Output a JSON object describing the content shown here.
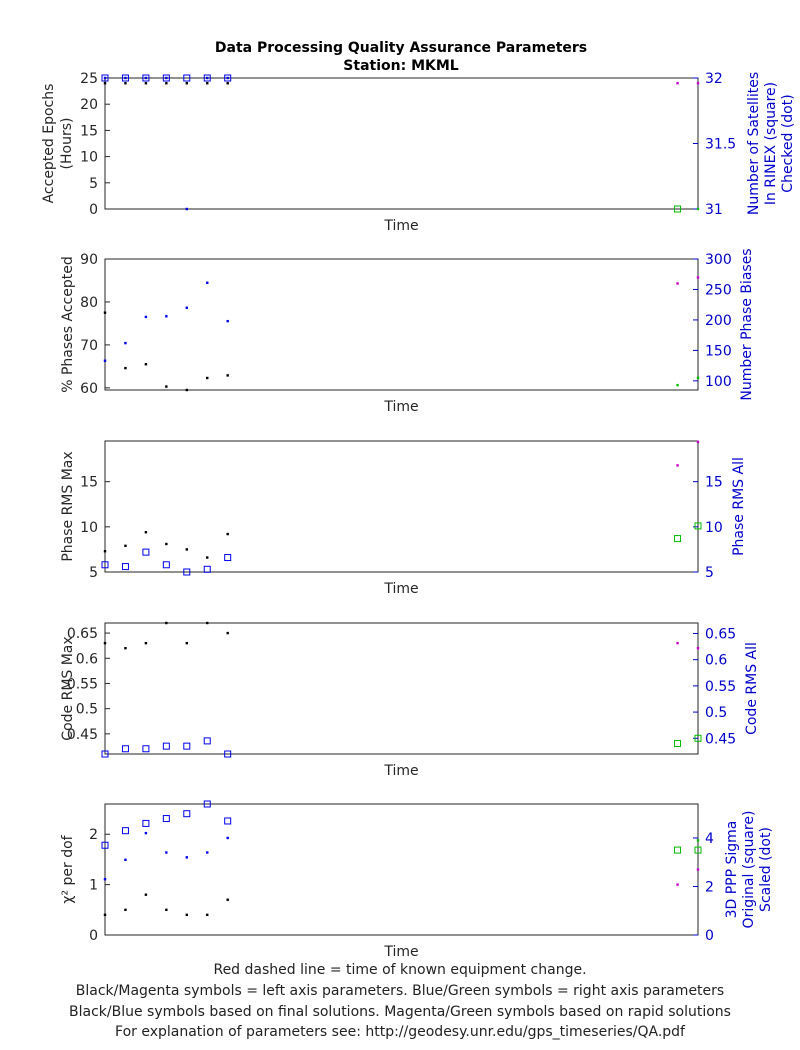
{
  "figure": {
    "title": "Data Processing Quality Assurance Parameters",
    "subtitle": "Station: MKML",
    "footer": [
      "Red dashed line = time of known equipment change.",
      "Black/Magenta symbols = left axis parameters. Blue/Green symbols = right axis parameters",
      "Black/Blue symbols based on final solutions.  Magenta/Green symbols based on rapid solutions",
      "For explanation of parameters see: http://geodesy.unr.edu/gps_timeseries/QA.pdf"
    ]
  },
  "colors": {
    "final_left": "#000000",
    "rapid_left": "#cc00cc",
    "final_right": "#0000ee",
    "rapid_right": "#00bb00",
    "right_axis": "#0000cc"
  },
  "chart_data": [
    {
      "type": "scatter",
      "xlabel": "Time",
      "ylabel_left": [
        "Accepted Epochs",
        "(Hours)"
      ],
      "ylabel_right": [
        "Number of Satellites",
        "In RINEX (square)",
        "Checked (dot)"
      ],
      "xlim": [
        0,
        29
      ],
      "ylim_left": [
        0,
        25
      ],
      "yticks_left": [
        0,
        5,
        10,
        15,
        20,
        25
      ],
      "ylim_right": [
        31,
        32
      ],
      "yticks_right": [
        31,
        31.5,
        32
      ],
      "series": [
        {
          "axis": "left",
          "source": "final",
          "marker": "dot",
          "x": [
            0,
            1,
            2,
            3,
            4,
            5,
            6
          ],
          "y": [
            24,
            24,
            24,
            24,
            24,
            24,
            24
          ]
        },
        {
          "axis": "left",
          "source": "rapid",
          "marker": "dot",
          "x": [
            28,
            29
          ],
          "y": [
            24,
            24
          ]
        },
        {
          "axis": "right",
          "source": "final",
          "marker": "square",
          "x": [
            0,
            1,
            2,
            3,
            4,
            5,
            6
          ],
          "y": [
            32,
            32,
            32,
            32,
            32,
            32,
            32
          ]
        },
        {
          "axis": "right",
          "source": "final",
          "marker": "dot",
          "x": [
            0,
            1,
            2,
            3,
            4,
            5,
            6
          ],
          "y": [
            32,
            32,
            32,
            32,
            31,
            32,
            32
          ]
        },
        {
          "axis": "right",
          "source": "rapid",
          "marker": "square",
          "x": [
            28
          ],
          "y": [
            31
          ]
        },
        {
          "axis": "right",
          "source": "rapid",
          "marker": "dot",
          "x": [
            29
          ],
          "y": [
            31
          ]
        }
      ]
    },
    {
      "type": "scatter",
      "xlabel": "Time",
      "ylabel_left": [
        "% Phases Accepted"
      ],
      "ylabel_right": [
        "Number Phase Biases"
      ],
      "xlim": [
        0,
        29
      ],
      "ylim_left": [
        59.5,
        90
      ],
      "yticks_left": [
        60,
        70,
        80,
        90
      ],
      "ylim_right": [
        85,
        300
      ],
      "yticks_right": [
        100,
        150,
        200,
        250,
        300
      ],
      "series": [
        {
          "axis": "left",
          "source": "final",
          "marker": "dot",
          "x": [
            0,
            1,
            2,
            3,
            4,
            5,
            6
          ],
          "y": [
            77.5,
            64.6,
            65.5,
            60.3,
            59.5,
            62.3,
            62.9
          ]
        },
        {
          "axis": "left",
          "source": "rapid",
          "marker": "dot",
          "x": [
            28,
            29
          ],
          "y": [
            84.3,
            85.7
          ]
        },
        {
          "axis": "right",
          "source": "final",
          "marker": "dot",
          "x": [
            0,
            1,
            2,
            3,
            4,
            5,
            6
          ],
          "y": [
            133,
            162,
            205,
            206,
            220,
            261,
            198
          ]
        },
        {
          "axis": "right",
          "source": "rapid",
          "marker": "dot",
          "x": [
            28,
            29
          ],
          "y": [
            93,
            105
          ]
        }
      ]
    },
    {
      "type": "scatter",
      "xlabel": "Time",
      "ylabel_left": [
        "Phase RMS Max"
      ],
      "ylabel_right": [
        "Phase RMS All"
      ],
      "xlim": [
        0,
        29
      ],
      "ylim_left": [
        5,
        19.5
      ],
      "yticks_left": [
        5,
        10,
        15
      ],
      "ylim_right": [
        5,
        19.5
      ],
      "yticks_right": [
        5,
        10,
        15
      ],
      "series": [
        {
          "axis": "left",
          "source": "final",
          "marker": "dot",
          "x": [
            0,
            1,
            2,
            3,
            4,
            5,
            6
          ],
          "y": [
            7.3,
            7.9,
            9.4,
            8.1,
            7.5,
            6.6,
            9.2
          ]
        },
        {
          "axis": "left",
          "source": "rapid",
          "marker": "dot",
          "x": [
            28,
            29
          ],
          "y": [
            16.8,
            19.4
          ]
        },
        {
          "axis": "right",
          "source": "final",
          "marker": "square",
          "x": [
            0,
            1,
            2,
            3,
            4,
            5,
            6
          ],
          "y": [
            5.8,
            5.6,
            7.2,
            5.8,
            5.0,
            5.3,
            6.6
          ]
        },
        {
          "axis": "right",
          "source": "rapid",
          "marker": "square",
          "x": [
            28,
            29
          ],
          "y": [
            8.7,
            10.1
          ]
        }
      ]
    },
    {
      "type": "scatter",
      "xlabel": "Time",
      "ylabel_left": [
        "Code RMS Max"
      ],
      "ylabel_right": [
        "Code RMS All"
      ],
      "xlim": [
        0,
        29
      ],
      "ylim_left": [
        0.41,
        0.67
      ],
      "yticks_left": [
        0.45,
        0.5,
        0.55,
        0.6,
        0.65
      ],
      "ylim_right": [
        0.42,
        0.67
      ],
      "yticks_right": [
        0.45,
        0.5,
        0.55,
        0.6,
        0.65
      ],
      "series": [
        {
          "axis": "left",
          "source": "final",
          "marker": "dot",
          "x": [
            0,
            1,
            2,
            3,
            4,
            5,
            6
          ],
          "y": [
            0.63,
            0.62,
            0.63,
            0.67,
            0.63,
            0.67,
            0.65
          ]
        },
        {
          "axis": "left",
          "source": "rapid",
          "marker": "dot",
          "x": [
            28,
            29
          ],
          "y": [
            0.63,
            0.62
          ]
        },
        {
          "axis": "right",
          "source": "final",
          "marker": "square",
          "x": [
            0,
            1,
            2,
            3,
            4,
            5,
            6
          ],
          "y": [
            0.42,
            0.43,
            0.43,
            0.435,
            0.435,
            0.445,
            0.42
          ]
        },
        {
          "axis": "right",
          "source": "rapid",
          "marker": "square",
          "x": [
            28,
            29
          ],
          "y": [
            0.44,
            0.45
          ]
        }
      ]
    },
    {
      "type": "scatter",
      "xlabel": "Time",
      "ylabel_left": [
        "χ² per dof"
      ],
      "ylabel_right": [
        "3D PPP Sigma",
        "Original (square)",
        "Scaled (dot)"
      ],
      "xlim": [
        0,
        29
      ],
      "ylim_left": [
        0,
        2.6
      ],
      "yticks_left": [
        0,
        1,
        2
      ],
      "ylim_right": [
        0,
        5.4
      ],
      "yticks_right": [
        0,
        2,
        4
      ],
      "series": [
        {
          "axis": "left",
          "source": "final",
          "marker": "dot",
          "x": [
            0,
            1,
            2,
            3,
            4,
            5,
            6
          ],
          "y": [
            0.4,
            0.5,
            0.8,
            0.5,
            0.4,
            0.4,
            0.7
          ]
        },
        {
          "axis": "left",
          "source": "rapid",
          "marker": "dot",
          "x": [
            28,
            29
          ],
          "y": [
            1.0,
            1.3
          ]
        },
        {
          "axis": "right",
          "source": "final",
          "marker": "square",
          "x": [
            0,
            1,
            2,
            3,
            4,
            5,
            6
          ],
          "y": [
            3.7,
            4.3,
            4.6,
            4.8,
            5.0,
            5.4,
            4.7
          ]
        },
        {
          "axis": "right",
          "source": "final",
          "marker": "dot",
          "x": [
            0,
            1,
            2,
            3,
            4,
            5,
            6
          ],
          "y": [
            2.3,
            3.1,
            4.2,
            3.4,
            3.2,
            3.4,
            4.0
          ]
        },
        {
          "axis": "right",
          "source": "rapid",
          "marker": "square",
          "x": [
            28,
            29
          ],
          "y": [
            3.5,
            3.5
          ]
        },
        {
          "axis": "right",
          "source": "rapid",
          "marker": "dot",
          "x": [
            29
          ],
          "y": [
            3.9
          ]
        }
      ]
    }
  ]
}
